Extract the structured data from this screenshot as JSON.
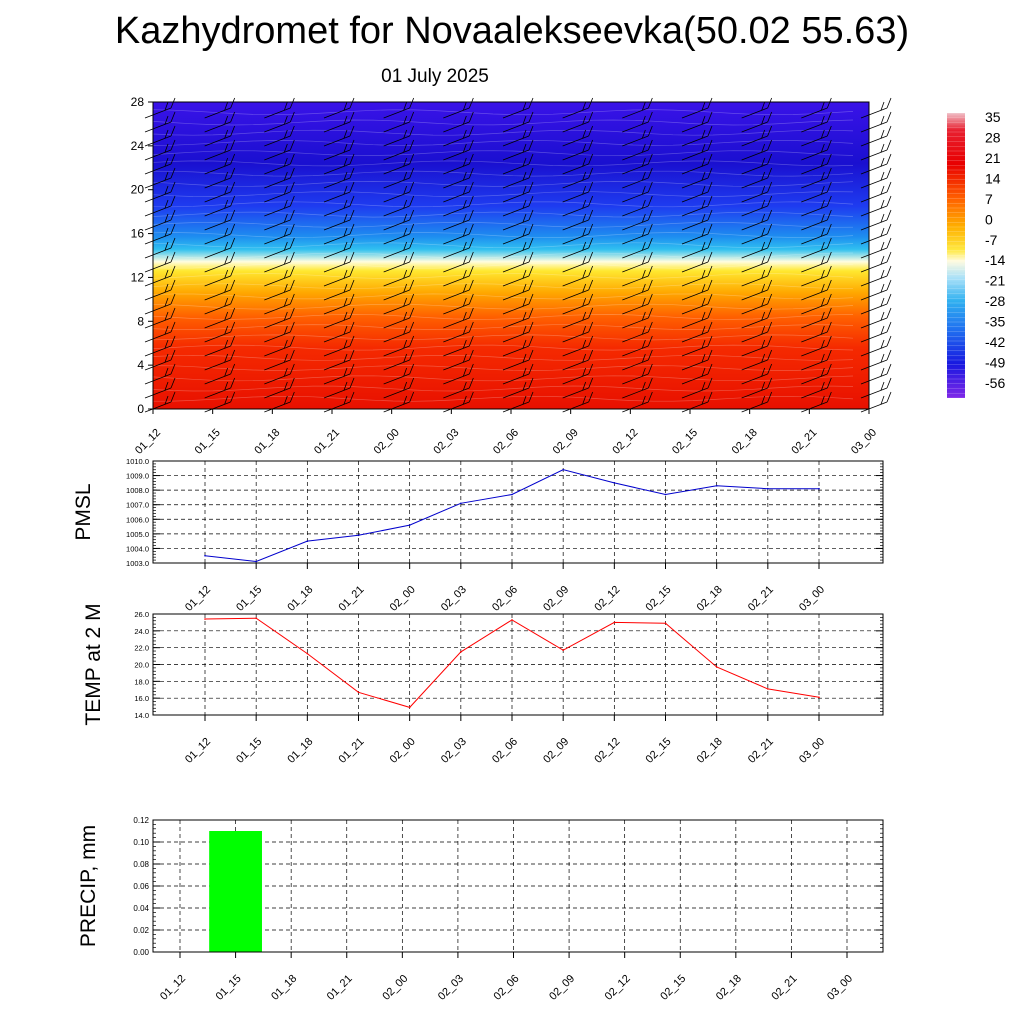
{
  "title": "Kazhydromet for Novaalekseevka(50.02 55.63)",
  "date": "01 July 2025",
  "time_labels": [
    "01_12",
    "01_15",
    "01_18",
    "01_21",
    "02_00",
    "02_03",
    "02_06",
    "02_09",
    "02_12",
    "02_15",
    "02_18",
    "02_21",
    "03_00"
  ],
  "colors": {
    "pmsl_line": "#0000cc",
    "temp_line": "#ff0000",
    "precip_bar": "#00ff00",
    "grid": "#000000"
  },
  "chart_data": [
    {
      "type": "heatmap",
      "name": "temperature-height-section",
      "x": [
        "01_12",
        "01_15",
        "01_18",
        "01_21",
        "02_00",
        "02_03",
        "02_06",
        "02_09",
        "02_12",
        "02_15",
        "02_18",
        "02_21",
        "03_00"
      ],
      "y_ticks": [
        "0",
        "4",
        "8",
        "12",
        "16",
        "20",
        "24",
        "28"
      ],
      "ylim": [
        0,
        28
      ],
      "colorbar_labels": [
        "35",
        "28",
        "21",
        "14",
        "7",
        "0",
        "-7",
        "-14",
        "-21",
        "-28",
        "-35",
        "-42",
        "-49",
        "-56"
      ],
      "overlay": "wind barbs"
    },
    {
      "type": "line",
      "ylabel": "PMSL",
      "x": [
        "01_12",
        "01_15",
        "01_18",
        "01_21",
        "02_00",
        "02_03",
        "02_06",
        "02_09",
        "02_12",
        "02_15",
        "02_18",
        "02_21",
        "03_00"
      ],
      "values": [
        1003.5,
        1003.1,
        1004.5,
        1004.9,
        1005.6,
        1007.1,
        1007.7,
        1009.4,
        1008.5,
        1007.7,
        1008.3,
        1008.1,
        1008.1
      ],
      "ylim": [
        1003.0,
        1010.0
      ],
      "y_ticks": [
        "1003.0",
        "1004.0",
        "1005.0",
        "1006.0",
        "1007.0",
        "1008.0",
        "1009.0",
        "1010.0"
      ],
      "grid": true
    },
    {
      "type": "line",
      "ylabel": "TEMP at 2 M",
      "x": [
        "01_12",
        "01_15",
        "01_18",
        "01_21",
        "02_00",
        "02_03",
        "02_06",
        "02_09",
        "02_12",
        "02_15",
        "02_18",
        "02_21",
        "03_00"
      ],
      "values": [
        25.4,
        25.5,
        21.3,
        16.7,
        14.9,
        21.5,
        25.3,
        21.7,
        25.0,
        24.9,
        19.7,
        17.1,
        16.1
      ],
      "ylim": [
        14.0,
        26.0
      ],
      "y_ticks": [
        "14.0",
        "16.0",
        "18.0",
        "20.0",
        "22.0",
        "24.0",
        "26.0"
      ],
      "grid": true
    },
    {
      "type": "bar",
      "ylabel": "PRECIP, mm",
      "categories": [
        "01_12",
        "01_15",
        "01_18",
        "01_21",
        "02_00",
        "02_03",
        "02_06",
        "02_09",
        "02_12",
        "02_15",
        "02_18",
        "02_21",
        "03_00"
      ],
      "values": [
        0,
        0.11,
        0,
        0,
        0,
        0,
        0,
        0,
        0,
        0,
        0,
        0,
        0
      ],
      "ylim": [
        0,
        0.12
      ],
      "y_ticks": [
        "0.00",
        "0.02",
        "0.04",
        "0.06",
        "0.08",
        "0.10",
        "0.12"
      ],
      "grid": true
    }
  ]
}
